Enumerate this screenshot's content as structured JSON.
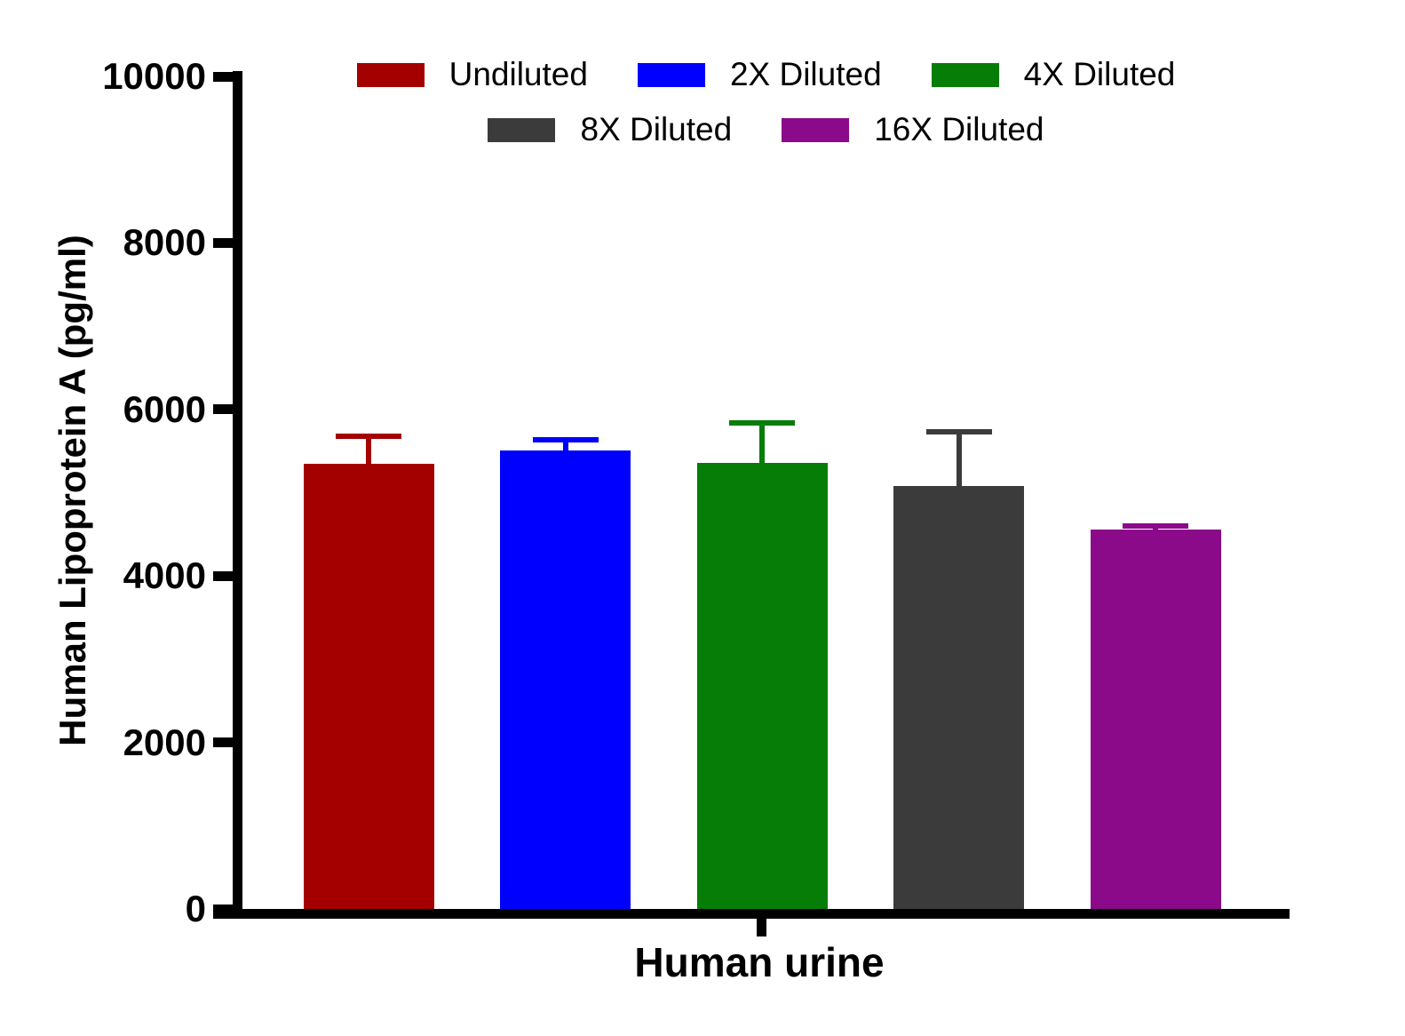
{
  "figure": {
    "background_color": "#FFFFFF",
    "axis_color": "#000000",
    "text_color": "#000000"
  },
  "chart_data": {
    "type": "bar",
    "title": "",
    "xlabel": "Human urine",
    "ylabel": "Human Lipoprotein A (pg/ml)",
    "ylim": [
      0,
      10000
    ],
    "yticks": [
      0,
      2000,
      4000,
      6000,
      8000,
      10000
    ],
    "ytick_labels": [
      "0",
      "2000",
      "4000",
      "6000",
      "8000",
      "10000"
    ],
    "categories": [
      "Human urine"
    ],
    "grid": false,
    "legend_position": "top",
    "error_bars": "upper_only",
    "series": [
      {
        "name": "Undiluted",
        "color": "#A40000",
        "value": 5350,
        "error": 360
      },
      {
        "name": "2X Diluted",
        "color": "#0000FF",
        "value": 5510,
        "error": 160
      },
      {
        "name": "4X Diluted",
        "color": "#067D06",
        "value": 5360,
        "error": 510
      },
      {
        "name": "8X Diluted",
        "color": "#3B3B3B",
        "value": 5080,
        "error": 680
      },
      {
        "name": "16X Diluted",
        "color": "#8A0A8A",
        "value": 4560,
        "error": 75
      }
    ],
    "legend_rows": [
      [
        "Undiluted",
        "2X Diluted",
        "4X Diluted"
      ],
      [
        "8X Diluted",
        "16X Diluted"
      ]
    ]
  }
}
